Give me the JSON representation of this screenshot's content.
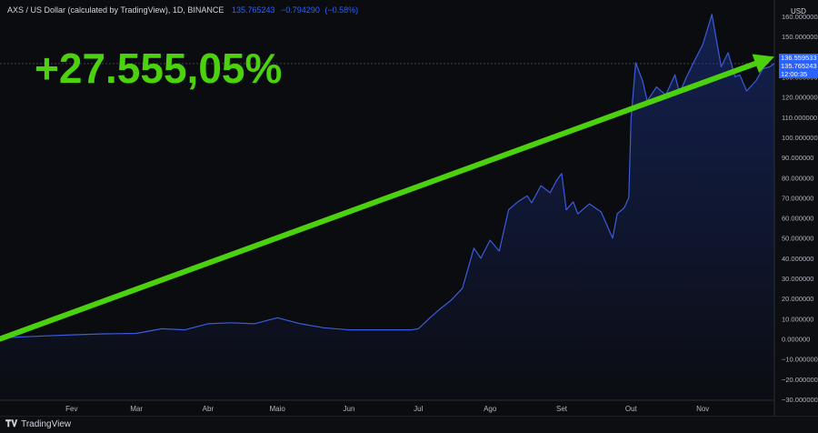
{
  "header": {
    "symbol": "AXS / US Dollar (calculated by TradingView), 1D, BINANCE",
    "price": "135.765243",
    "change": "−0.794290",
    "change_pct": "(−0.58%)"
  },
  "headline": "+27.555,05%",
  "axis_currency": "USD",
  "price_tags": {
    "crosshair": "136.559533",
    "last": "135.765243",
    "countdown": "12:00:35"
  },
  "footer": {
    "brand": "TradingView",
    "logo": "tv-logo-icon"
  },
  "colors": {
    "line": "#3b5bdb",
    "arrow": "#4cd10f",
    "tag": "#2962ff"
  },
  "chart_data": {
    "type": "area",
    "title": "",
    "xlabel": "",
    "ylabel": "",
    "ylim": [
      -30,
      160
    ],
    "y_ticks": [
      "160.000000",
      "150.000000",
      "130.000000",
      "120.000000",
      "110.000000",
      "100.000000",
      "90.000000",
      "80.000000",
      "70.000000",
      "60.000000",
      "50.000000",
      "40.000000",
      "30.000000",
      "20.000000",
      "10.000000",
      "0.000000",
      "−10.000000",
      "−20.000000",
      "−30.000000"
    ],
    "y_tick_values": [
      160,
      150,
      130,
      120,
      110,
      100,
      90,
      80,
      70,
      60,
      50,
      40,
      30,
      20,
      10,
      0,
      -10,
      -20,
      -30
    ],
    "x_ticks": [
      "Fev",
      "Mar",
      "Abr",
      "Maio",
      "Jun",
      "Jul",
      "Ago",
      "Set",
      "Out",
      "Nov"
    ],
    "x_tick_days": [
      31,
      59,
      90,
      120,
      151,
      181,
      212,
      243,
      273,
      304
    ],
    "x_range_days": [
      0,
      335
    ],
    "series": [
      {
        "days": [
          0,
          10,
          20,
          31,
          45,
          59,
          70,
          80,
          90,
          100,
          110,
          120,
          130,
          140,
          151,
          160,
          170,
          178,
          181,
          186,
          190,
          195,
          200,
          205,
          208,
          212,
          216,
          220,
          224,
          228,
          230,
          234,
          238,
          241,
          243,
          245,
          248,
          250,
          255,
          260,
          265,
          267,
          270,
          272,
          273,
          275,
          278,
          280,
          284,
          288,
          292,
          294,
          297,
          300,
          304,
          308,
          312,
          315,
          318,
          320,
          323,
          327,
          330,
          333,
          335
        ],
        "values": [
          0.5,
          1.0,
          1.5,
          2.0,
          2.5,
          2.7,
          5.0,
          4.5,
          7.5,
          8.0,
          7.5,
          10.5,
          7.5,
          5.5,
          4.5,
          4.5,
          4.5,
          4.5,
          5.0,
          10.5,
          14.5,
          19.0,
          25.0,
          45.0,
          40.0,
          49.0,
          43.5,
          64.0,
          68.0,
          71.0,
          67.5,
          76.0,
          72.5,
          79.0,
          82.0,
          64.0,
          68.0,
          62.0,
          67.0,
          63.0,
          50.0,
          62.0,
          65.0,
          70.0,
          109.0,
          137.0,
          128.0,
          118.0,
          125.0,
          121.0,
          131.0,
          122.0,
          130.0,
          137.0,
          146.0,
          161.0,
          135.0,
          142.0,
          130.0,
          131.0,
          123.0,
          128.0,
          134.0,
          135.0,
          136.6
        ]
      }
    ],
    "annotation_arrow": {
      "from": {
        "day": 0,
        "value": 0
      },
      "to": {
        "day": 335,
        "value": 140
      }
    },
    "grid": false,
    "current_value": 136.559533
  }
}
